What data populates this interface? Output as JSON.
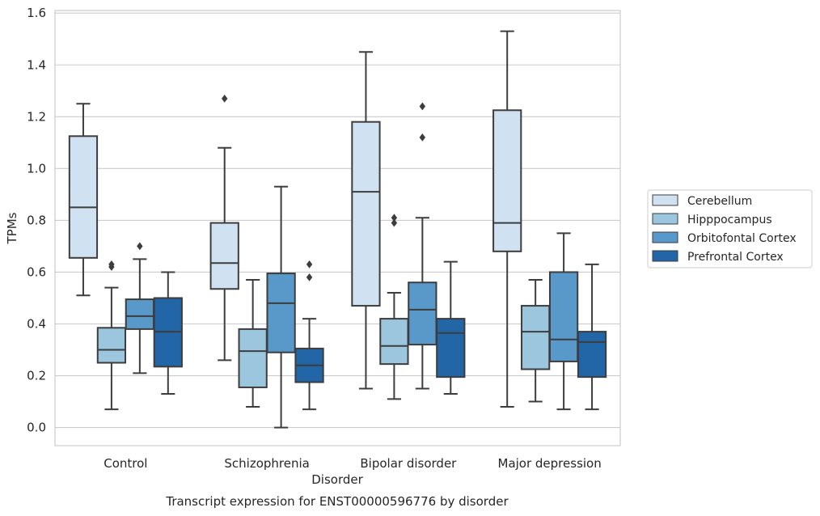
{
  "chart_data": {
    "type": "box",
    "title": "Transcript expression for ENST00000596776 by disorder",
    "xlabel": "Disorder",
    "ylabel": "TPMs",
    "categories": [
      "Control",
      "Schizophrenia",
      "Bipolar disorder",
      "Major depression"
    ],
    "ylim": [
      -0.07,
      1.61
    ],
    "yticks": [
      "0.0",
      "0.2",
      "0.4",
      "0.6",
      "0.8",
      "1.0",
      "1.2",
      "1.4",
      "1.6"
    ],
    "grid": true,
    "legend_position": "right",
    "series": [
      {
        "name": "Cerebellum",
        "color": "#d0e1f1",
        "boxes": [
          {
            "whislo": 0.51,
            "q1": 0.655,
            "med": 0.85,
            "q3": 1.125,
            "whishi": 1.25,
            "fliers": []
          },
          {
            "whislo": 0.26,
            "q1": 0.535,
            "med": 0.635,
            "q3": 0.79,
            "whishi": 1.08,
            "fliers": [
              1.27
            ]
          },
          {
            "whislo": 0.15,
            "q1": 0.47,
            "med": 0.91,
            "q3": 1.18,
            "whishi": 1.45,
            "fliers": []
          },
          {
            "whislo": 0.08,
            "q1": 0.68,
            "med": 0.79,
            "q3": 1.225,
            "whishi": 1.53,
            "fliers": []
          }
        ]
      },
      {
        "name": "Hipppocampus",
        "color": "#9cc5de",
        "boxes": [
          {
            "whislo": 0.07,
            "q1": 0.25,
            "med": 0.3,
            "q3": 0.385,
            "whishi": 0.54,
            "fliers": [
              0.62,
              0.63
            ]
          },
          {
            "whislo": 0.08,
            "q1": 0.155,
            "med": 0.295,
            "q3": 0.38,
            "whishi": 0.57,
            "fliers": []
          },
          {
            "whislo": 0.11,
            "q1": 0.245,
            "med": 0.315,
            "q3": 0.42,
            "whishi": 0.52,
            "fliers": [
              0.79,
              0.81
            ]
          },
          {
            "whislo": 0.1,
            "q1": 0.225,
            "med": 0.37,
            "q3": 0.47,
            "whishi": 0.57,
            "fliers": []
          }
        ]
      },
      {
        "name": "Orbitofontal Cortex",
        "color": "#5899c9",
        "boxes": [
          {
            "whislo": 0.21,
            "q1": 0.38,
            "med": 0.43,
            "q3": 0.495,
            "whishi": 0.65,
            "fliers": [
              0.7
            ]
          },
          {
            "whislo": 0.0,
            "q1": 0.29,
            "med": 0.48,
            "q3": 0.595,
            "whishi": 0.93,
            "fliers": []
          },
          {
            "whislo": 0.15,
            "q1": 0.32,
            "med": 0.455,
            "q3": 0.56,
            "whishi": 0.81,
            "fliers": [
              1.12,
              1.24
            ]
          },
          {
            "whislo": 0.07,
            "q1": 0.255,
            "med": 0.34,
            "q3": 0.6,
            "whishi": 0.75,
            "fliers": []
          }
        ]
      },
      {
        "name": "Prefrontal Cortex",
        "color": "#2266a8",
        "boxes": [
          {
            "whislo": 0.13,
            "q1": 0.235,
            "med": 0.37,
            "q3": 0.5,
            "whishi": 0.6,
            "fliers": []
          },
          {
            "whislo": 0.07,
            "q1": 0.175,
            "med": 0.24,
            "q3": 0.305,
            "whishi": 0.42,
            "fliers": [
              0.58,
              0.63
            ]
          },
          {
            "whislo": 0.13,
            "q1": 0.195,
            "med": 0.365,
            "q3": 0.42,
            "whishi": 0.64,
            "fliers": []
          },
          {
            "whislo": 0.07,
            "q1": 0.195,
            "med": 0.33,
            "q3": 0.37,
            "whishi": 0.63,
            "fliers": []
          }
        ]
      }
    ]
  }
}
